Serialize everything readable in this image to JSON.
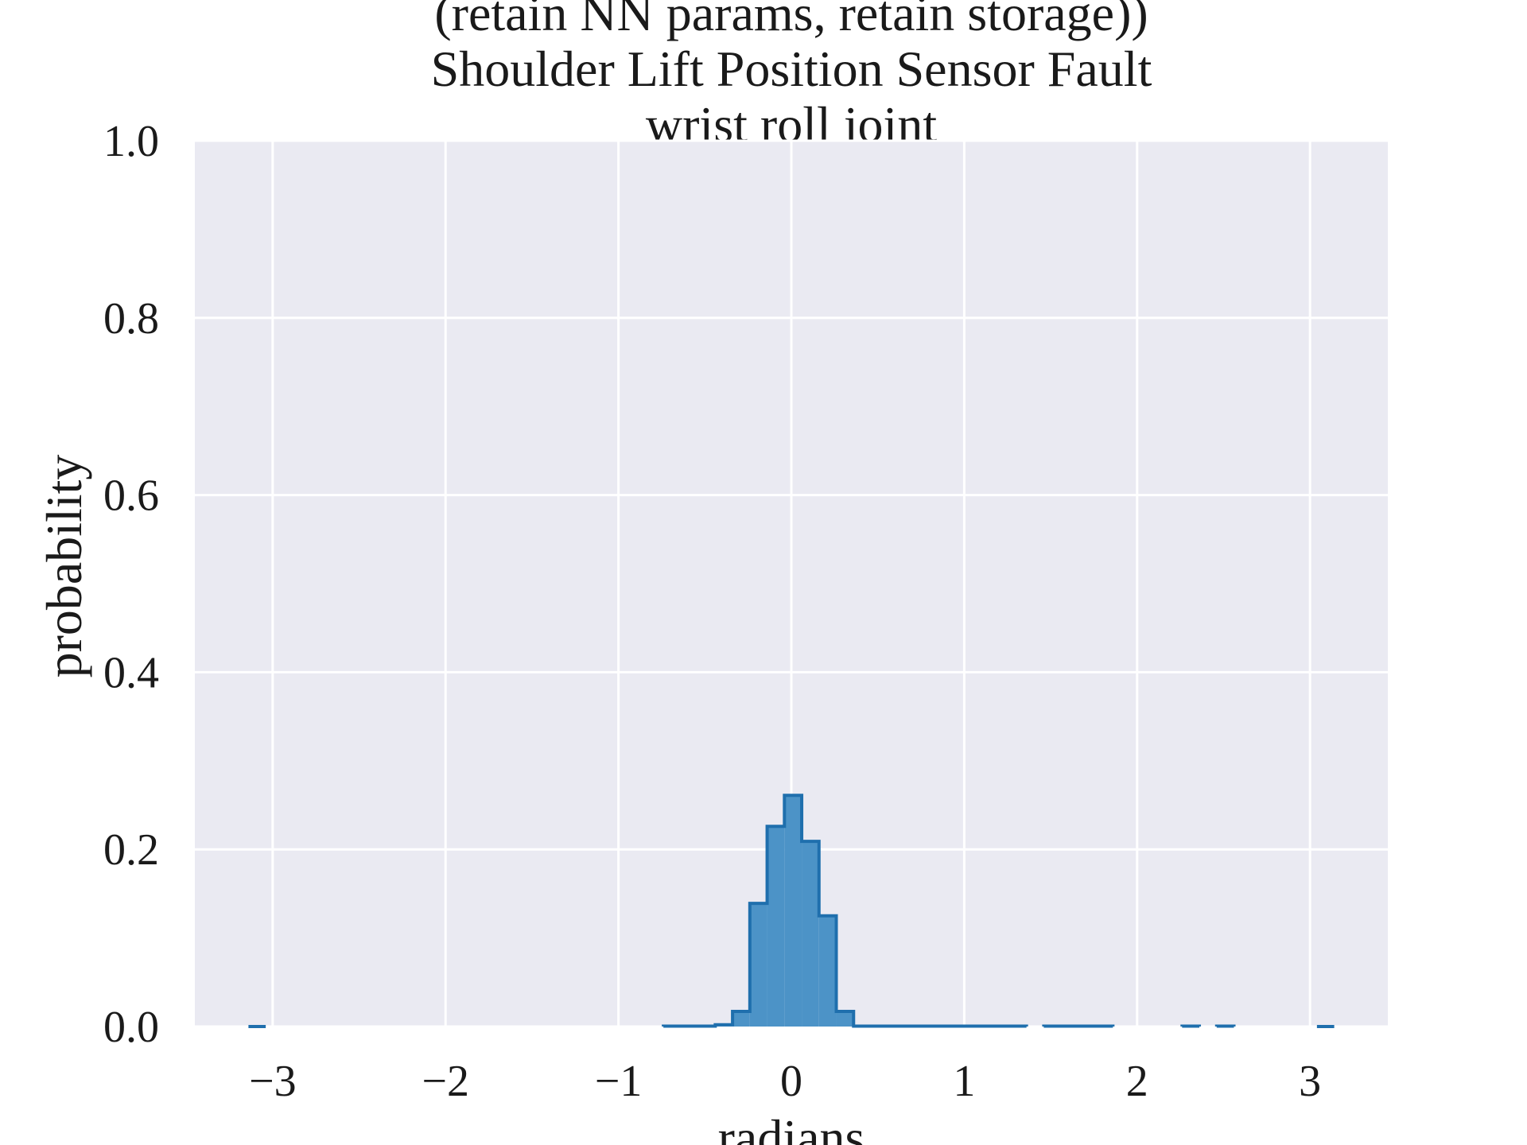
{
  "chart_data": {
    "type": "bar",
    "title_lines": [
      "(retain NN params, retain storage))",
      "Shoulder Lift Position Sensor Fault",
      "wrist roll joint"
    ],
    "xlabel": "radians",
    "ylabel": "probability",
    "xlim": [
      -3.45,
      3.45
    ],
    "ylim": [
      0.0,
      1.0
    ],
    "x_ticks": [
      -3,
      -2,
      -1,
      0,
      1,
      2,
      3
    ],
    "x_tick_labels": [
      "−3",
      "−2",
      "−1",
      "0",
      "1",
      "2",
      "3"
    ],
    "y_ticks": [
      0.0,
      0.2,
      0.4,
      0.6,
      0.8,
      1.0
    ],
    "y_tick_labels": [
      "0.0",
      "0.2",
      "0.4",
      "0.6",
      "0.8",
      "1.0"
    ],
    "grid": true,
    "histtype": "stepfilled",
    "bins": [
      {
        "x0": -3.14,
        "x1": -3.04,
        "value": 0.0
      },
      {
        "x0": -0.74,
        "x1": -0.44,
        "value": 0.0005
      },
      {
        "x0": -0.44,
        "x1": -0.34,
        "value": 0.002
      },
      {
        "x0": -0.34,
        "x1": -0.24,
        "value": 0.017
      },
      {
        "x0": -0.24,
        "x1": -0.14,
        "value": 0.139
      },
      {
        "x0": -0.14,
        "x1": -0.04,
        "value": 0.226
      },
      {
        "x0": -0.04,
        "x1": 0.06,
        "value": 0.261
      },
      {
        "x0": 0.06,
        "x1": 0.16,
        "value": 0.209
      },
      {
        "x0": 0.16,
        "x1": 0.26,
        "value": 0.125
      },
      {
        "x0": 0.26,
        "x1": 0.36,
        "value": 0.017
      },
      {
        "x0": 0.36,
        "x1": 1.36,
        "value": 0.0005
      },
      {
        "x0": 1.46,
        "x1": 1.86,
        "value": 0.0005
      },
      {
        "x0": 2.26,
        "x1": 2.36,
        "value": 0.0005
      },
      {
        "x0": 2.46,
        "x1": 2.56,
        "value": 0.0005
      },
      {
        "x0": 3.04,
        "x1": 3.14,
        "value": 0.0
      }
    ],
    "colors": {
      "fill": "#4c93c7",
      "edge": "#1f6fad",
      "plot_background": "#eaeaf2",
      "grid": "#ffffff"
    }
  }
}
